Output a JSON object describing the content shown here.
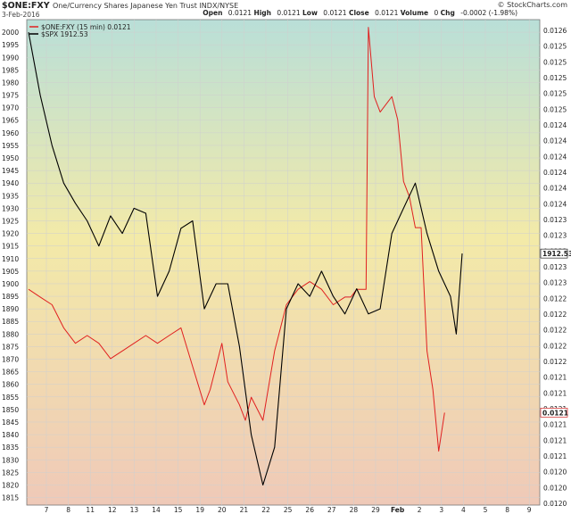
{
  "header": {
    "symbol": "$ONE:FXY",
    "description": "One/Currency Shares Japanese Yen Trust  INDX/NYSE",
    "date": "3-Feb-2016",
    "brand": "© StockCharts.com",
    "quote": {
      "open_label": "Open",
      "open": "0.0121",
      "high_label": "High",
      "high": "0.0121",
      "low_label": "Low",
      "low": "0.0121",
      "close_label": "Close",
      "close": "0.0121",
      "volume_label": "Volume",
      "volume": "0",
      "chg_label": "Chg",
      "chg": "-0.0002 (-1.98%)"
    }
  },
  "chart_data": {
    "type": "line",
    "grid": true,
    "legend_position": "top-left",
    "x_labels": [
      "7",
      "8",
      "11",
      "12",
      "13",
      "14",
      "15",
      "19",
      "20",
      "21",
      "22",
      "25",
      "26",
      "27",
      "28",
      "29",
      "Feb",
      "2",
      "3",
      "4",
      "5",
      "8",
      "9"
    ],
    "left_axis": {
      "range": [
        1812,
        2005
      ],
      "ticks": [
        2000,
        1995,
        1990,
        1985,
        1980,
        1975,
        1970,
        1965,
        1960,
        1955,
        1950,
        1945,
        1940,
        1935,
        1930,
        1925,
        1920,
        1915,
        1910,
        1905,
        1900,
        1895,
        1890,
        1885,
        1880,
        1875,
        1870,
        1865,
        1860,
        1855,
        1850,
        1845,
        1840,
        1835,
        1830,
        1825,
        1820,
        1815
      ]
    },
    "right_axis": {
      "ticks": [
        "0.0126",
        "0.0125",
        "0.0125",
        "0.0125",
        "0.0125",
        "0.0125",
        "0.0124",
        "0.0124",
        "0.0124",
        "0.0124",
        "0.0124",
        "0.0124",
        "0.0123",
        "0.0123",
        "0.0123",
        "0.0123",
        "0.0123",
        "0.0122",
        "0.0122",
        "0.0122",
        "0.0122",
        "0.0122",
        "0.0121",
        "0.0121",
        "0.0121",
        "0.0121",
        "0.0121",
        "0.0121",
        "0.0120",
        "0.0120",
        "0.0120"
      ]
    },
    "last_value_tags": {
      "spx": "1912.53",
      "fxy": "0.0121"
    },
    "series": [
      {
        "name": "$ONE:FXY (15 min) 0.0121",
        "axis": "right",
        "color": "#e02020",
        "points": [
          [
            0,
            0.01228
          ],
          [
            1,
            0.01227
          ],
          [
            2,
            0.01226
          ],
          [
            3,
            0.01223
          ],
          [
            4,
            0.01221
          ],
          [
            5,
            0.01222
          ],
          [
            6,
            0.01221
          ],
          [
            7,
            0.01219
          ],
          [
            8,
            0.0122
          ],
          [
            9,
            0.01221
          ],
          [
            10,
            0.01222
          ],
          [
            11,
            0.01221
          ],
          [
            12,
            0.01222
          ],
          [
            13,
            0.01223
          ],
          [
            14,
            0.01218
          ],
          [
            15,
            0.01213
          ],
          [
            15.5,
            0.01215
          ],
          [
            16,
            0.01218
          ],
          [
            16.5,
            0.01221
          ],
          [
            17,
            0.01216
          ],
          [
            18,
            0.01213
          ],
          [
            18.5,
            0.01211
          ],
          [
            19,
            0.01214
          ],
          [
            20,
            0.01211
          ],
          [
            21,
            0.0122
          ],
          [
            22,
            0.01226
          ],
          [
            23,
            0.01228
          ],
          [
            24,
            0.01229
          ],
          [
            25,
            0.01228
          ],
          [
            26,
            0.01226
          ],
          [
            27,
            0.01227
          ],
          [
            27.5,
            0.01227
          ],
          [
            28,
            0.01228
          ],
          [
            28.8,
            0.01228
          ],
          [
            29,
            0.01262
          ],
          [
            29.5,
            0.01253
          ],
          [
            30,
            0.01251
          ],
          [
            31,
            0.01253
          ],
          [
            31.5,
            0.0125
          ],
          [
            32,
            0.01242
          ],
          [
            32.5,
            0.0124
          ],
          [
            33,
            0.01236
          ],
          [
            33.5,
            0.01236
          ],
          [
            34,
            0.0122
          ],
          [
            34.5,
            0.01215
          ],
          [
            35,
            0.01207
          ],
          [
            35.5,
            0.01212
          ]
        ]
      },
      {
        "name": "$SPX 1912.53",
        "axis": "left",
        "color": "#000000",
        "points": [
          [
            0,
            2000
          ],
          [
            1,
            1975
          ],
          [
            2,
            1955
          ],
          [
            3,
            1940
          ],
          [
            4,
            1932
          ],
          [
            5,
            1925
          ],
          [
            6,
            1915
          ],
          [
            7,
            1927
          ],
          [
            8,
            1920
          ],
          [
            9,
            1930
          ],
          [
            10,
            1928
          ],
          [
            11,
            1895
          ],
          [
            12,
            1905
          ],
          [
            13,
            1922
          ],
          [
            14,
            1925
          ],
          [
            15,
            1890
          ],
          [
            16,
            1900
          ],
          [
            17,
            1900
          ],
          [
            18,
            1875
          ],
          [
            19,
            1840
          ],
          [
            20,
            1820
          ],
          [
            21,
            1835
          ],
          [
            22,
            1890
          ],
          [
            23,
            1900
          ],
          [
            24,
            1895
          ],
          [
            25,
            1905
          ],
          [
            26,
            1895
          ],
          [
            27,
            1888
          ],
          [
            28,
            1898
          ],
          [
            29,
            1888
          ],
          [
            30,
            1890
          ],
          [
            31,
            1920
          ],
          [
            32,
            1930
          ],
          [
            33,
            1940
          ],
          [
            34,
            1920
          ],
          [
            35,
            1905
          ],
          [
            36,
            1895
          ],
          [
            36.5,
            1880
          ],
          [
            37,
            1912
          ]
        ]
      }
    ]
  }
}
